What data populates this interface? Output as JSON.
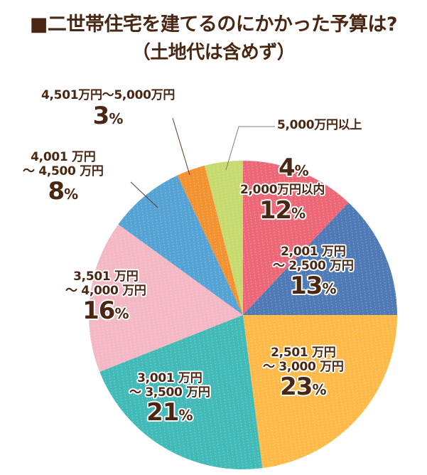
{
  "title": {
    "line1": "■二世帯住宅を建てるのにかかった予算は?",
    "line2": "（土地代は含めず）"
  },
  "colors": {
    "text": "#4a2712",
    "leader_line": "#5a3a28",
    "slice_under_2000": "#ec6877",
    "slice_2001_2500": "#4f7ab5",
    "slice_2501_3000": "#fdba48",
    "slice_3001_3500": "#42bab8",
    "slice_3501_4000": "#f4b8c5",
    "slice_4001_4500": "#55a2d4",
    "slice_4501_5000": "#f29231",
    "slice_over_5000": "#c6da6e"
  },
  "labels": {
    "s1": {
      "range": "2,000万円以内",
      "value": "12",
      "unit": "%"
    },
    "s2": {
      "range1": "2,001 万円",
      "range2": "～ 2,500 万円",
      "value": "13",
      "unit": "%"
    },
    "s3": {
      "range1": "2,501 万円",
      "range2": "～ 3,000 万円",
      "value": "23",
      "unit": "%"
    },
    "s4": {
      "range1": "3,001 万円",
      "range2": "～ 3,500 万円",
      "value": "21",
      "unit": "%"
    },
    "s5": {
      "range1": "3,501 万円",
      "range2": "～ 4,000 万円",
      "value": "16",
      "unit": "%"
    },
    "s6": {
      "range1": "4,001 万円",
      "range2": "～ 4,500 万円",
      "value": "8",
      "unit": "%"
    },
    "s7": {
      "range": "4,501万円～5,000万円",
      "value": "3",
      "unit": "%"
    },
    "s8": {
      "range": "5,000万円以上",
      "value": "4",
      "unit": "%"
    }
  },
  "chart_data": {
    "type": "pie",
    "title": "■二世帯住宅を建てるのにかかった予算は?（土地代は含めず）",
    "unit": "%",
    "start_angle": "12 o'clock, clockwise",
    "categories": [
      "2,000万円以内",
      "2,001万円～2,500万円",
      "2,501万円～3,000万円",
      "3,001万円～3,500万円",
      "3,501万円～4,000万円",
      "4,001万円～4,500万円",
      "4,501万円～5,000万円",
      "5,000万円以上"
    ],
    "values": [
      12,
      13,
      23,
      21,
      16,
      8,
      3,
      4
    ],
    "colors": [
      "#ec6877",
      "#4f7ab5",
      "#fdba48",
      "#42bab8",
      "#f4b8c5",
      "#55a2d4",
      "#f29231",
      "#c6da6e"
    ],
    "legend": "none (labels placed on/near slices)"
  }
}
